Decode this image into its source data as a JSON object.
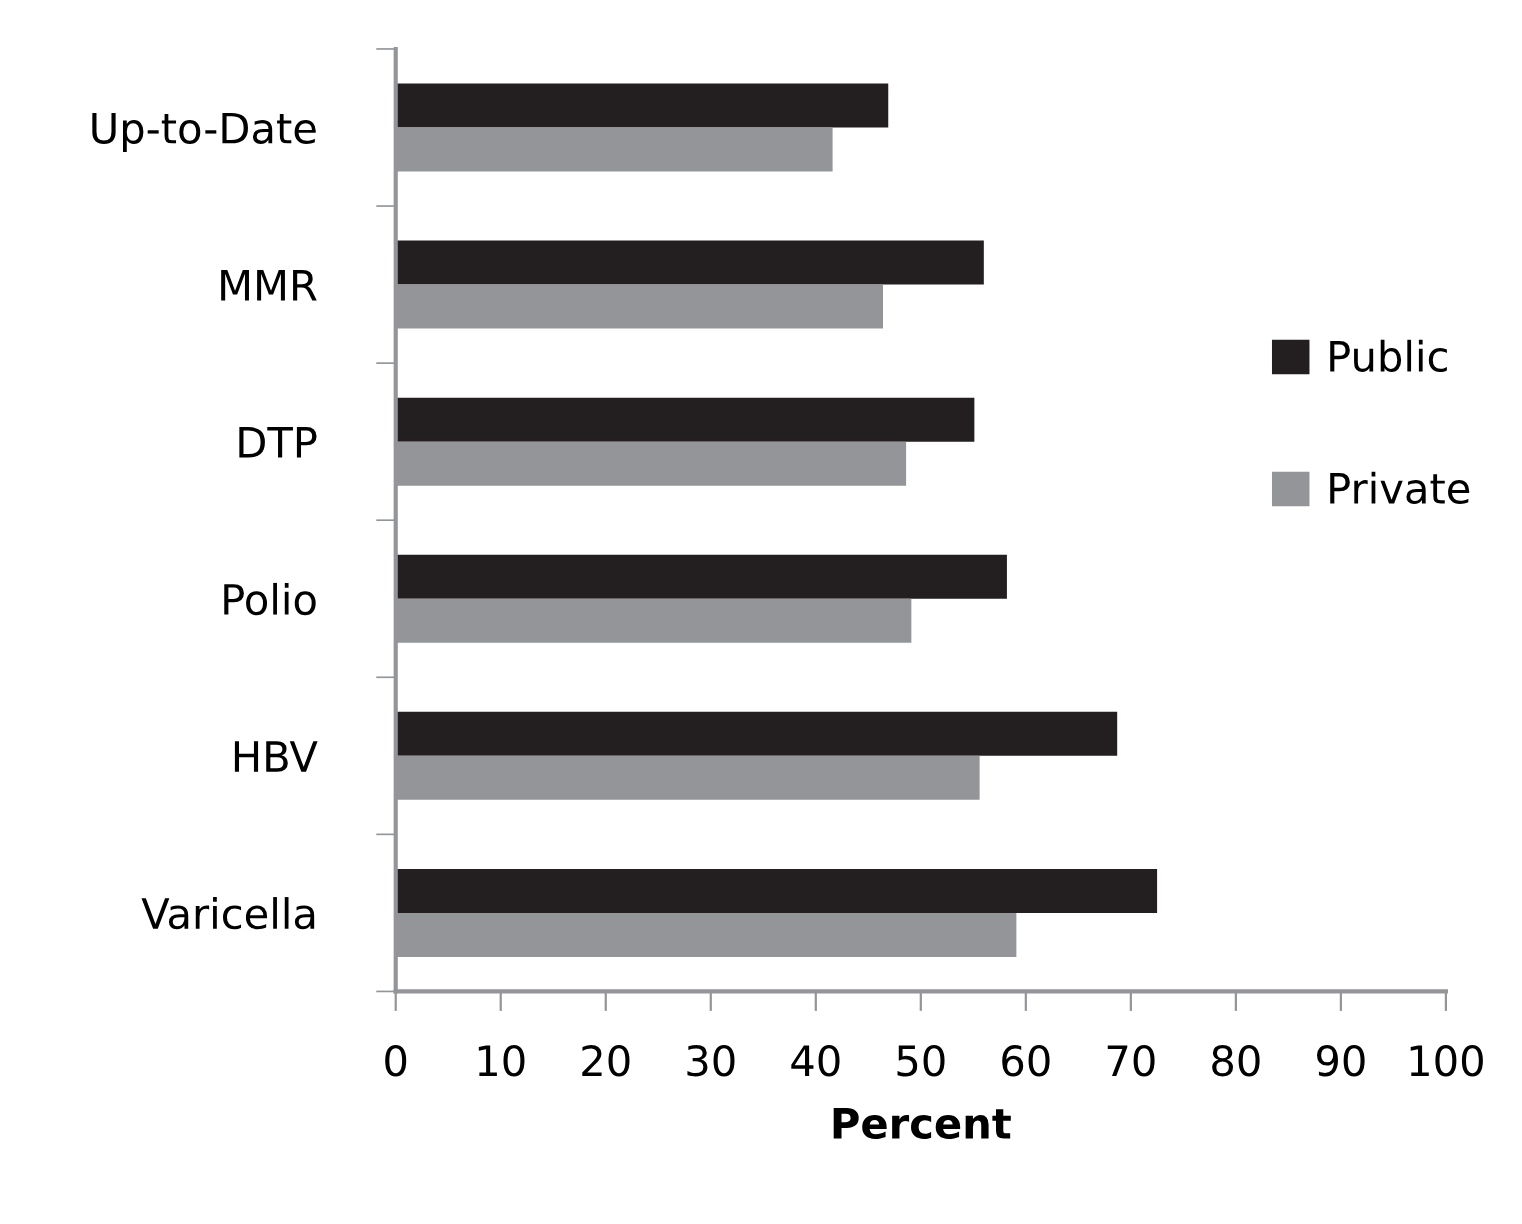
{
  "chart_data": {
    "type": "bar",
    "orientation": "horizontal",
    "xlabel": "Percent",
    "categories": [
      "Up-to-Date",
      "MMR",
      "DTP",
      "Polio",
      "HBV",
      "Varicella"
    ],
    "series": [
      {
        "name": "Public",
        "color": "#231f20",
        "values": [
          46.9,
          56.0,
          55.1,
          58.2,
          68.7,
          72.5
        ]
      },
      {
        "name": "Private",
        "color": "#939598",
        "values": [
          41.6,
          46.4,
          48.6,
          49.1,
          55.6,
          59.1
        ]
      }
    ],
    "xlim": [
      0,
      100
    ],
    "xticks": [
      0,
      10,
      20,
      30,
      40,
      50,
      60,
      70,
      80,
      90,
      100
    ],
    "grid": false,
    "legend": "right"
  }
}
